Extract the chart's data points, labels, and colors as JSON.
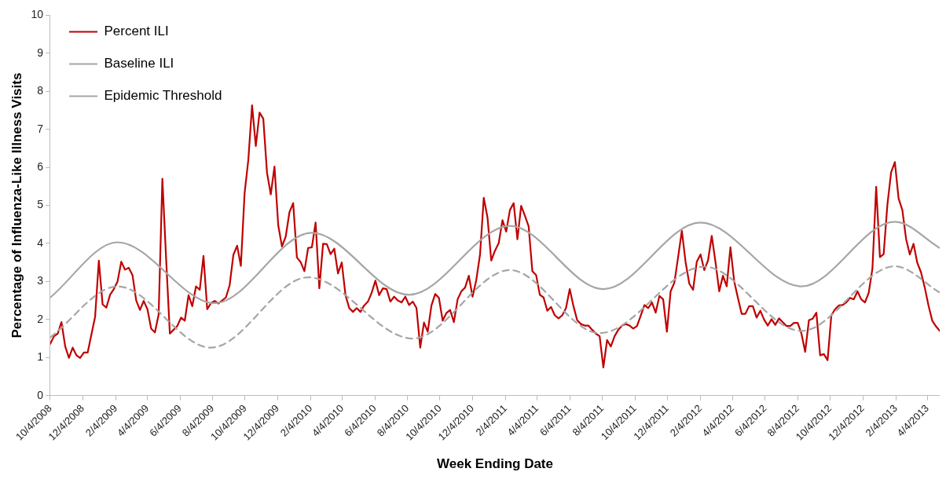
{
  "chart_data": {
    "type": "line",
    "xlabel": "Week Ending Date",
    "ylabel": "Percentage of Influenza-Like Illness Visits",
    "xlim": [
      "2008-10-04",
      "2013-04-27"
    ],
    "xticks": [
      {
        "value": "2008-10-04",
        "label": "10/4/2008"
      },
      {
        "value": "2008-12-04",
        "label": "12/4/2008"
      },
      {
        "value": "2009-02-04",
        "label": "2/4/2009"
      },
      {
        "value": "2009-04-04",
        "label": "4/4/2009"
      },
      {
        "value": "2009-06-04",
        "label": "6/4/2009"
      },
      {
        "value": "2009-08-04",
        "label": "8/4/2009"
      },
      {
        "value": "2009-10-04",
        "label": "10/4/2009"
      },
      {
        "value": "2009-12-04",
        "label": "12/4/2009"
      },
      {
        "value": "2010-02-04",
        "label": "2/4/2010"
      },
      {
        "value": "2010-04-04",
        "label": "4/4/2010"
      },
      {
        "value": "2010-06-04",
        "label": "6/4/2010"
      },
      {
        "value": "2010-08-04",
        "label": "8/4/2010"
      },
      {
        "value": "2010-10-04",
        "label": "10/4/2010"
      },
      {
        "value": "2010-12-04",
        "label": "12/4/2010"
      },
      {
        "value": "2011-02-04",
        "label": "2/4/2011"
      },
      {
        "value": "2011-04-04",
        "label": "4/4/2011"
      },
      {
        "value": "2011-06-04",
        "label": "6/4/2011"
      },
      {
        "value": "2011-08-04",
        "label": "8/4/2011"
      },
      {
        "value": "2011-10-04",
        "label": "10/4/2011"
      },
      {
        "value": "2011-12-04",
        "label": "12/4/2011"
      },
      {
        "value": "2012-02-04",
        "label": "2/4/2012"
      },
      {
        "value": "2012-04-04",
        "label": "4/4/2012"
      },
      {
        "value": "2012-06-04",
        "label": "6/4/2012"
      },
      {
        "value": "2012-08-04",
        "label": "8/4/2012"
      },
      {
        "value": "2012-10-04",
        "label": "10/4/2012"
      },
      {
        "value": "2012-12-04",
        "label": "12/4/2012"
      },
      {
        "value": "2013-02-04",
        "label": "2/4/2013"
      },
      {
        "value": "2013-04-04",
        "label": "4/4/2013"
      }
    ],
    "ylim": [
      0,
      10
    ],
    "yticks": [
      0,
      1,
      2,
      3,
      4,
      5,
      6,
      7,
      8,
      9,
      10
    ],
    "grid": false,
    "legend": "top left",
    "marker": "none",
    "x": [
      "2008-10-04",
      "2008-10-11",
      "2008-10-18",
      "2008-10-25",
      "2008-11-01",
      "2008-11-08",
      "2008-11-15",
      "2008-11-22",
      "2008-11-29",
      "2008-12-06",
      "2008-12-13",
      "2008-12-20",
      "2008-12-27",
      "2009-01-03",
      "2009-01-10",
      "2009-01-17",
      "2009-01-24",
      "2009-01-31",
      "2009-02-07",
      "2009-02-14",
      "2009-02-21",
      "2009-02-28",
      "2009-03-07",
      "2009-03-14",
      "2009-03-21",
      "2009-03-28",
      "2009-04-04",
      "2009-04-11",
      "2009-04-18",
      "2009-04-25",
      "2009-05-02",
      "2009-05-09",
      "2009-05-16",
      "2009-05-23",
      "2009-05-30",
      "2009-06-06",
      "2009-06-13",
      "2009-06-20",
      "2009-06-27",
      "2009-07-04",
      "2009-07-11",
      "2009-07-18",
      "2009-07-25",
      "2009-08-01",
      "2009-08-08",
      "2009-08-15",
      "2009-08-22",
      "2009-08-29",
      "2009-09-05",
      "2009-09-12",
      "2009-09-19",
      "2009-09-26",
      "2009-10-03",
      "2009-10-10",
      "2009-10-17",
      "2009-10-24",
      "2009-10-31",
      "2009-11-07",
      "2009-11-14",
      "2009-11-21",
      "2009-11-28",
      "2009-12-05",
      "2009-12-12",
      "2009-12-19",
      "2009-12-26",
      "2010-01-02",
      "2010-01-09",
      "2010-01-16",
      "2010-01-23",
      "2010-01-30",
      "2010-02-06",
      "2010-02-13",
      "2010-02-20",
      "2010-02-27",
      "2010-03-06",
      "2010-03-13",
      "2010-03-20",
      "2010-03-27",
      "2010-04-03",
      "2010-04-10",
      "2010-04-17",
      "2010-04-24",
      "2010-05-01",
      "2010-05-08",
      "2010-05-15",
      "2010-05-22",
      "2010-05-29",
      "2010-06-05",
      "2010-06-12",
      "2010-06-19",
      "2010-06-26",
      "2010-07-03",
      "2010-07-10",
      "2010-07-17",
      "2010-07-24",
      "2010-07-31",
      "2010-08-07",
      "2010-08-14",
      "2010-08-21",
      "2010-08-28",
      "2010-09-04",
      "2010-09-11",
      "2010-09-18",
      "2010-09-25",
      "2010-10-02",
      "2010-10-09",
      "2010-10-16",
      "2010-10-23",
      "2010-10-30",
      "2010-11-06",
      "2010-11-13",
      "2010-11-20",
      "2010-11-27",
      "2010-12-04",
      "2010-12-11",
      "2010-12-18",
      "2010-12-25",
      "2011-01-01",
      "2011-01-08",
      "2011-01-15",
      "2011-01-22",
      "2011-01-29",
      "2011-02-05",
      "2011-02-12",
      "2011-02-19",
      "2011-02-26",
      "2011-03-05",
      "2011-03-12",
      "2011-03-19",
      "2011-03-26",
      "2011-04-02",
      "2011-04-09",
      "2011-04-16",
      "2011-04-23",
      "2011-04-30",
      "2011-05-07",
      "2011-05-14",
      "2011-05-21",
      "2011-05-28",
      "2011-06-04",
      "2011-06-11",
      "2011-06-18",
      "2011-06-25",
      "2011-07-02",
      "2011-07-09",
      "2011-07-16",
      "2011-07-23",
      "2011-07-30",
      "2011-08-06",
      "2011-08-13",
      "2011-08-20",
      "2011-08-27",
      "2011-09-03",
      "2011-09-10",
      "2011-09-17",
      "2011-09-24",
      "2011-10-01",
      "2011-10-08",
      "2011-10-15",
      "2011-10-22",
      "2011-10-29",
      "2011-11-05",
      "2011-11-12",
      "2011-11-19",
      "2011-11-26",
      "2011-12-03",
      "2011-12-10",
      "2011-12-17",
      "2011-12-24",
      "2011-12-31",
      "2012-01-07",
      "2012-01-14",
      "2012-01-21",
      "2012-01-28",
      "2012-02-04",
      "2012-02-11",
      "2012-02-18",
      "2012-02-25",
      "2012-03-03",
      "2012-03-10",
      "2012-03-17",
      "2012-03-24",
      "2012-03-31",
      "2012-04-07",
      "2012-04-14",
      "2012-04-21",
      "2012-04-28",
      "2012-05-05",
      "2012-05-12",
      "2012-05-19",
      "2012-05-26",
      "2012-06-02",
      "2012-06-09",
      "2012-06-16",
      "2012-06-23",
      "2012-06-30",
      "2012-07-07",
      "2012-07-14",
      "2012-07-21",
      "2012-07-28",
      "2012-08-04",
      "2012-08-11",
      "2012-08-18",
      "2012-08-25",
      "2012-09-01",
      "2012-09-08",
      "2012-09-15",
      "2012-09-22",
      "2012-09-29",
      "2012-10-06",
      "2012-10-13",
      "2012-10-20",
      "2012-10-27",
      "2012-11-03",
      "2012-11-10",
      "2012-11-17",
      "2012-11-24",
      "2012-12-01",
      "2012-12-08",
      "2012-12-15",
      "2012-12-22",
      "2012-12-29",
      "2013-01-05",
      "2013-01-12",
      "2013-01-19",
      "2013-01-26",
      "2013-02-02",
      "2013-02-09",
      "2013-02-16",
      "2013-02-23",
      "2013-03-02",
      "2013-03-09",
      "2013-03-16",
      "2013-03-23",
      "2013-03-30",
      "2013-04-06",
      "2013-04-13",
      "2013-04-20",
      "2013-04-27"
    ],
    "series": [
      {
        "name": "Percent ILI",
        "color": "#c00000",
        "values": [
          1.36,
          1.56,
          1.63,
          1.93,
          1.29,
          0.99,
          1.26,
          1.06,
          0.99,
          1.13,
          1.13,
          1.6,
          2.07,
          3.55,
          2.4,
          2.31,
          2.65,
          2.8,
          3.0,
          3.52,
          3.31,
          3.36,
          3.17,
          2.5,
          2.25,
          2.49,
          2.27,
          1.76,
          1.66,
          2.13,
          5.7,
          3.6,
          1.63,
          1.73,
          1.83,
          2.05,
          1.97,
          2.64,
          2.35,
          2.87,
          2.78,
          3.67,
          2.27,
          2.43,
          2.49,
          2.42,
          2.5,
          2.58,
          2.9,
          3.7,
          3.94,
          3.41,
          5.32,
          6.2,
          7.63,
          6.56,
          7.44,
          7.28,
          5.86,
          5.29,
          6.02,
          4.48,
          3.92,
          4.18,
          4.82,
          5.06,
          3.63,
          3.51,
          3.27,
          3.88,
          3.9,
          4.55,
          2.82,
          3.99,
          3.98,
          3.72,
          3.86,
          3.21,
          3.5,
          2.64,
          2.3,
          2.2,
          2.3,
          2.2,
          2.37,
          2.47,
          2.7,
          3.02,
          2.64,
          2.82,
          2.8,
          2.47,
          2.6,
          2.5,
          2.45,
          2.6,
          2.38,
          2.47,
          2.3,
          1.26,
          1.92,
          1.68,
          2.37,
          2.67,
          2.57,
          1.97,
          2.17,
          2.25,
          1.93,
          2.53,
          2.74,
          2.84,
          3.15,
          2.6,
          3.04,
          3.71,
          5.2,
          4.68,
          3.55,
          3.81,
          4.01,
          4.61,
          4.31,
          4.88,
          5.06,
          4.11,
          4.99,
          4.73,
          4.45,
          3.27,
          3.17,
          2.65,
          2.58,
          2.23,
          2.33,
          2.11,
          2.03,
          2.11,
          2.3,
          2.8,
          2.35,
          1.98,
          1.88,
          1.84,
          1.84,
          1.73,
          1.63,
          1.56,
          0.74,
          1.46,
          1.29,
          1.56,
          1.73,
          1.84,
          1.88,
          1.84,
          1.76,
          1.83,
          2.1,
          2.38,
          2.3,
          2.45,
          2.18,
          2.62,
          2.53,
          1.68,
          2.74,
          2.97,
          3.64,
          4.33,
          3.51,
          2.94,
          2.78,
          3.52,
          3.71,
          3.3,
          3.55,
          4.2,
          3.51,
          2.74,
          3.15,
          2.87,
          3.9,
          3.01,
          2.57,
          2.15,
          2.15,
          2.35,
          2.35,
          2.05,
          2.23,
          2.0,
          1.84,
          2.01,
          1.86,
          2.03,
          1.93,
          1.83,
          1.83,
          1.91,
          1.91,
          1.63,
          1.15,
          1.98,
          2.02,
          2.18,
          1.06,
          1.09,
          0.93,
          2.11,
          2.27,
          2.37,
          2.38,
          2.45,
          2.57,
          2.53,
          2.74,
          2.53,
          2.45,
          2.7,
          3.34,
          5.49,
          3.64,
          3.72,
          5.02,
          5.87,
          6.14,
          5.18,
          4.88,
          4.12,
          3.71,
          3.99,
          3.49,
          3.24,
          2.84,
          2.37,
          1.97,
          1.82,
          1.7
        ]
      },
      {
        "name": "Baseline ILI",
        "color": "#a6a6a6",
        "line_style": "dashed",
        "x": [
          "2008-10-04",
          "2009-02-07",
          "2009-08-01",
          "2010-01-30",
          "2010-08-14",
          "2011-02-12",
          "2011-07-30",
          "2012-02-11",
          "2012-08-11",
          "2013-02-02",
          "2013-04-27"
        ],
        "values": [
          1.53,
          2.87,
          1.26,
          3.11,
          1.5,
          3.3,
          1.64,
          3.39,
          1.7,
          3.4,
          2.71
        ]
      },
      {
        "name": "Epidemic Threshold",
        "color": "#a6a6a6",
        "line_style": "solid",
        "x": [
          "2008-10-04",
          "2009-02-07",
          "2009-08-08",
          "2010-02-06",
          "2010-08-07",
          "2011-02-12",
          "2011-08-06",
          "2012-02-04",
          "2012-08-11",
          "2013-02-02",
          "2013-04-27"
        ],
        "values": [
          2.58,
          4.03,
          2.43,
          4.28,
          2.65,
          4.46,
          2.8,
          4.55,
          2.87,
          4.57,
          3.88
        ]
      }
    ]
  }
}
